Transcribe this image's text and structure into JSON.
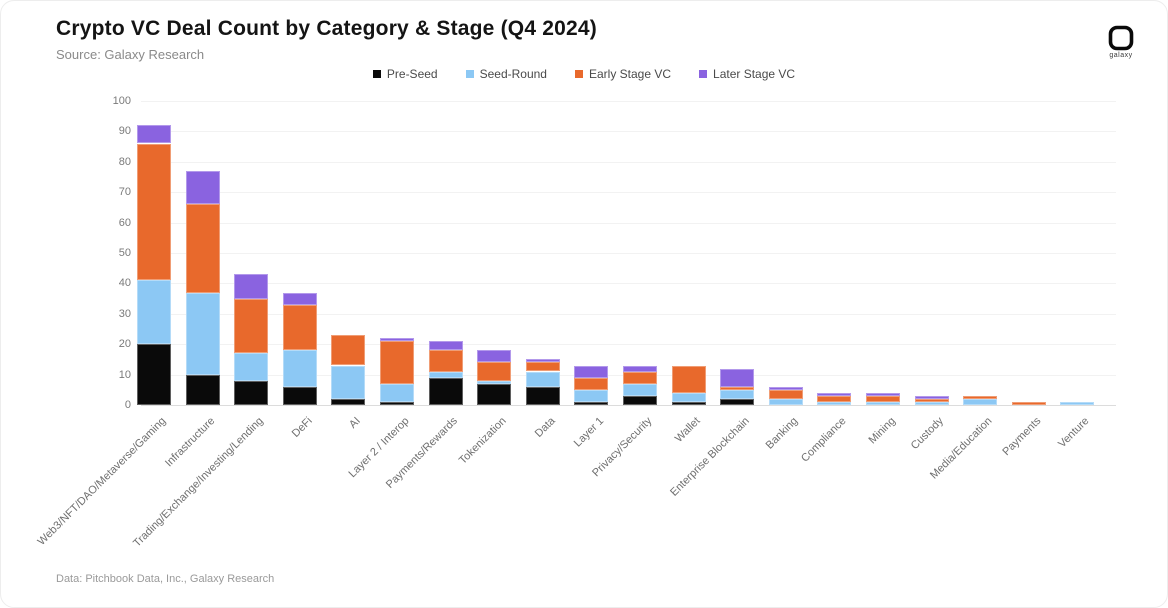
{
  "header": {
    "title": "Crypto VC Deal Count by Category & Stage (Q4 2024)",
    "source": "Source: Galaxy Research",
    "logo_label": "galaxy"
  },
  "footer": {
    "attribution": "Data: Pitchbook Data, Inc., Galaxy Research"
  },
  "colors": {
    "pre_seed": "#0a0a0a",
    "seed_round": "#8cc8f4",
    "early_stage_vc": "#e8692c",
    "later_stage_vc": "#8a63e0",
    "grid": "#f2f2f2",
    "axis_text": "#7a7a7a"
  },
  "chart_data": {
    "type": "bar",
    "stacked": true,
    "title": "Crypto VC Deal Count by Category & Stage (Q4 2024)",
    "xlabel": "",
    "ylabel": "",
    "ylim": [
      0,
      100
    ],
    "ytick_step": 10,
    "grid": true,
    "legend_position": "top",
    "categories": [
      "Web3/NFT/DAO/Metaverse/Gaming",
      "Infrastructure",
      "Trading/Exchange/Investing/Lending",
      "DeFi",
      "AI",
      "Layer 2 / Interop",
      "Payments/Rewards",
      "Tokenization",
      "Data",
      "Layer 1",
      "Privacy/Security",
      "Wallet",
      "Enterprise Blockchain",
      "Banking",
      "Compliance",
      "Mining",
      "Custody",
      "Media/Education",
      "Payments",
      "Venture"
    ],
    "series": [
      {
        "name": "Pre-Seed",
        "color": "#0a0a0a",
        "values": [
          20,
          10,
          8,
          6,
          2,
          1,
          9,
          7,
          6,
          1,
          3,
          1,
          2,
          0,
          0,
          0,
          0,
          0,
          0,
          0
        ]
      },
      {
        "name": "Seed-Round",
        "color": "#8cc8f4",
        "values": [
          21,
          27,
          9,
          12,
          11,
          6,
          2,
          1,
          5,
          4,
          4,
          3,
          3,
          2,
          1,
          1,
          1,
          2,
          0,
          1
        ]
      },
      {
        "name": "Early Stage VC",
        "color": "#e8692c",
        "values": [
          45,
          29,
          18,
          15,
          10,
          14,
          7,
          6,
          3,
          4,
          4,
          9,
          1,
          3,
          2,
          2,
          1,
          1,
          1,
          0
        ]
      },
      {
        "name": "Later Stage VC",
        "color": "#8a63e0",
        "values": [
          6,
          11,
          8,
          4,
          0,
          1,
          3,
          4,
          1,
          4,
          2,
          0,
          6,
          1,
          1,
          1,
          1,
          0,
          0,
          0
        ]
      }
    ],
    "totals": [
      92,
      77,
      43,
      37,
      23,
      22,
      21,
      18,
      15,
      13,
      13,
      13,
      12,
      6,
      4,
      4,
      3,
      3,
      1,
      1
    ]
  }
}
